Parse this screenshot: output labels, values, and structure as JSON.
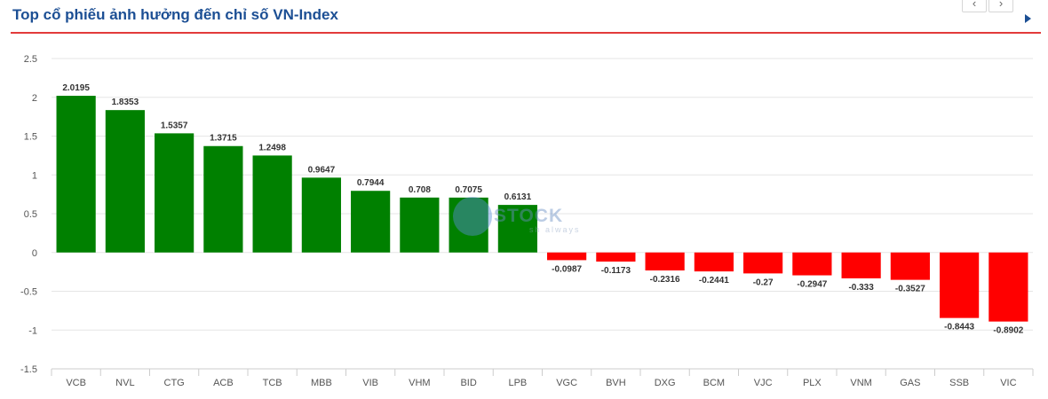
{
  "header": {
    "title": "Top cổ phiếu ảnh hưởng đến chỉ số VN-Index",
    "prev_label": "‹",
    "next_label": "›"
  },
  "watermark": {
    "text": "STOCK",
    "subtext": "sh always"
  },
  "chart_data": {
    "type": "bar",
    "title": "Top cổ phiếu ảnh hưởng đến chỉ số VN-Index",
    "xlabel": "",
    "ylabel": "",
    "ylim": [
      -1.5,
      2.5
    ],
    "yticks": [
      "2.5",
      "2",
      "1.5",
      "1",
      "0.5",
      "0",
      "-0.5",
      "-1",
      "-1.5"
    ],
    "grid": true,
    "positive_color": "#008000",
    "negative_color": "#ff0000",
    "categories": [
      "VCB",
      "NVL",
      "CTG",
      "ACB",
      "TCB",
      "MBB",
      "VIB",
      "VHM",
      "BID",
      "LPB",
      "VGC",
      "BVH",
      "DXG",
      "BCM",
      "VJC",
      "PLX",
      "VNM",
      "GAS",
      "SSB",
      "VIC"
    ],
    "values": [
      2.0195,
      1.8353,
      1.5357,
      1.3715,
      1.2498,
      0.9647,
      0.7944,
      0.708,
      0.7075,
      0.6131,
      -0.0987,
      -0.1173,
      -0.2316,
      -0.2441,
      -0.27,
      -0.2947,
      -0.333,
      -0.3527,
      -0.8443,
      -0.8902
    ],
    "value_labels": [
      "2.0195",
      "1.8353",
      "1.5357",
      "1.3715",
      "1.2498",
      "0.9647",
      "0.7944",
      "0.708",
      "0.7075",
      "0.6131",
      "-0.0987",
      "-0.1173",
      "-0.2316",
      "-0.2441",
      "-0.27",
      "-0.2947",
      "-0.333",
      "-0.3527",
      "-0.8443",
      "-0.8902"
    ]
  }
}
